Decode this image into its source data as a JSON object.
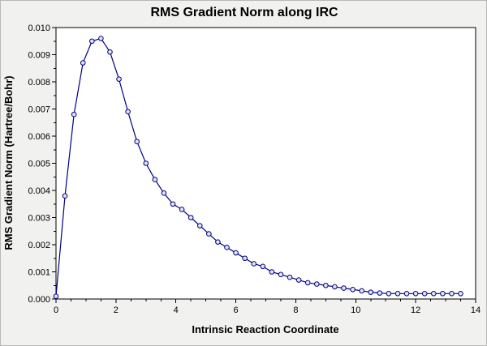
{
  "colors": {
    "figure_bg": "#f1f1ef",
    "plot_bg": "#ffffff",
    "axis": "#000000",
    "line": "#000080",
    "marker_fill": "#dfe3f5"
  },
  "chart_data": {
    "type": "line",
    "title": "RMS Gradient Norm along IRC",
    "xlabel": "Intrinsic Reaction Coordinate",
    "ylabel": "RMS Gradient Norm (Hartree/Bohr)",
    "xlim": [
      0,
      14
    ],
    "ylim": [
      0,
      0.01
    ],
    "grid": false,
    "legend_position": "none",
    "marker": "circle",
    "xticks": [
      0,
      2,
      4,
      6,
      8,
      10,
      12,
      14
    ],
    "xtick_labels": [
      "0",
      "2",
      "4",
      "6",
      "8",
      "10",
      "12",
      "14"
    ],
    "yticks": [
      0.0,
      0.001,
      0.002,
      0.003,
      0.004,
      0.005,
      0.006,
      0.007,
      0.008,
      0.009,
      0.01
    ],
    "ytick_labels": [
      "0.000",
      "0.001",
      "0.002",
      "0.003",
      "0.004",
      "0.005",
      "0.006",
      "0.007",
      "0.008",
      "0.009",
      "0.010"
    ],
    "minor_x_step": 0.5,
    "minor_y_step": 0.0005,
    "x": [
      0.0,
      0.3,
      0.6,
      0.9,
      1.2,
      1.5,
      1.8,
      2.1,
      2.4,
      2.7,
      3.0,
      3.3,
      3.6,
      3.9,
      4.2,
      4.5,
      4.8,
      5.1,
      5.4,
      5.7,
      6.0,
      6.3,
      6.6,
      6.9,
      7.2,
      7.5,
      7.8,
      8.1,
      8.4,
      8.7,
      9.0,
      9.3,
      9.6,
      9.9,
      10.2,
      10.5,
      10.8,
      11.1,
      11.4,
      11.7,
      12.0,
      12.3,
      12.6,
      12.9,
      13.2,
      13.5
    ],
    "y": [
      0.0001,
      0.0038,
      0.0068,
      0.0087,
      0.0095,
      0.0096,
      0.0091,
      0.0081,
      0.0069,
      0.0058,
      0.005,
      0.0044,
      0.0039,
      0.0035,
      0.0033,
      0.003,
      0.0027,
      0.0024,
      0.0021,
      0.0019,
      0.0017,
      0.0015,
      0.0013,
      0.0012,
      0.001,
      0.0009,
      0.0008,
      0.0007,
      0.0006,
      0.00055,
      0.0005,
      0.00045,
      0.0004,
      0.00035,
      0.0003,
      0.00025,
      0.00022,
      0.0002,
      0.0002,
      0.0002,
      0.0002,
      0.0002,
      0.0002,
      0.0002,
      0.0002,
      0.0002
    ]
  }
}
